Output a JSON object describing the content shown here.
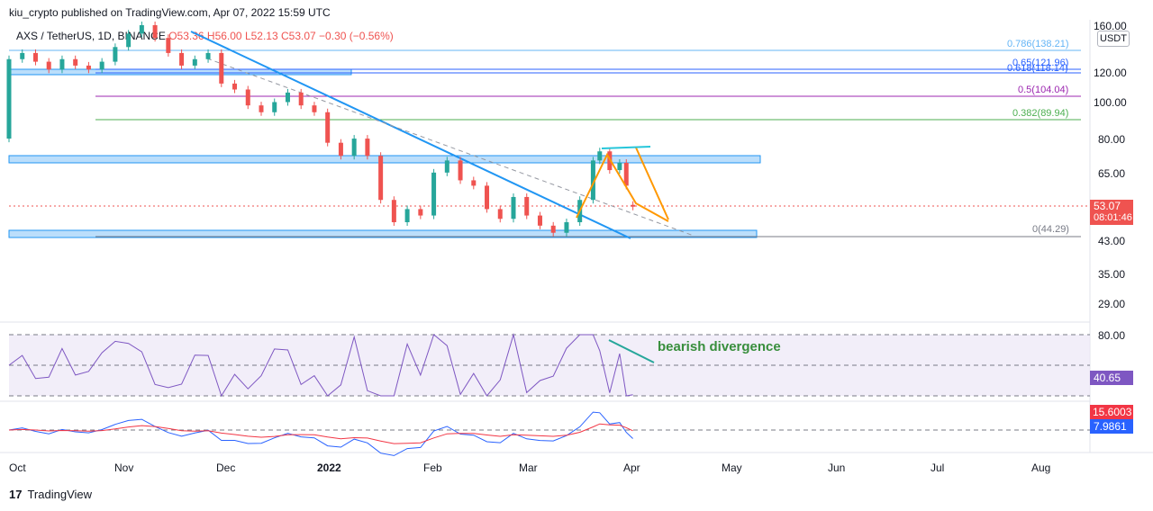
{
  "header": {
    "publisher": "kiu_crypto published on TradingView.com, Apr 07, 2022 15:59 UTC"
  },
  "legend": {
    "symbol": "AXS / TetherUS, 1D, BINANCE",
    "open": "O53.36",
    "high": "H56.00",
    "low": "L52.13",
    "close": "C53.07",
    "change": "−0.30 (−0.56%)"
  },
  "currency_button": "USDT",
  "price_axis": [
    "160.00",
    "120.00",
    "100.00",
    "80.00",
    "65.00",
    "43.00",
    "35.00",
    "29.00"
  ],
  "last_price": {
    "value": "53.07",
    "countdown": "08:01:46"
  },
  "fib_levels": [
    {
      "label": "0.786(138.21)",
      "color": "#64b5f6"
    },
    {
      "label": "0.65(121.96)",
      "color": "#2962ff"
    },
    {
      "label": "0.618(118.14)",
      "color": "#2962ff"
    },
    {
      "label": "0.5(104.04)",
      "color": "#9c27b0"
    },
    {
      "label": "0.382(89.94)",
      "color": "#4caf50"
    },
    {
      "label": "0(44.29)",
      "color": "#787b86"
    }
  ],
  "annotation": "bearish divergence",
  "rsi_axis": [
    "80.00"
  ],
  "rsi_value": "40.65",
  "macd_values": {
    "signal": "15.6003",
    "macd": "7.9861"
  },
  "time_axis": [
    "Oct",
    "Nov",
    "Dec",
    "2022",
    "Feb",
    "Mar",
    "Apr",
    "May",
    "Jun",
    "Jul",
    "Aug"
  ],
  "footer": "TradingView",
  "colors": {
    "up": "#26a69a",
    "down": "#ef5350",
    "trend": "#2196f3",
    "wedge": "#ff9800",
    "rsi": "#7e57c2",
    "macd_fast": "#2962ff",
    "macd_slow": "#f23645"
  },
  "chart_data": {
    "type": "candlestick",
    "title": "AXS / TetherUS, 1D, BINANCE",
    "y_scale": "log",
    "ylim": [
      26,
      165
    ],
    "x_start": "2021-10-01",
    "x_end": "2022-08-20",
    "candles": [
      {
        "d": "2021-10-01",
        "o": 80,
        "c": 130
      },
      {
        "d": "2021-10-05",
        "o": 130,
        "c": 135
      },
      {
        "d": "2021-10-09",
        "o": 135,
        "c": 128
      },
      {
        "d": "2021-10-13",
        "o": 128,
        "c": 122
      },
      {
        "d": "2021-10-17",
        "o": 122,
        "c": 130
      },
      {
        "d": "2021-10-21",
        "o": 130,
        "c": 125
      },
      {
        "d": "2021-10-25",
        "o": 125,
        "c": 122
      },
      {
        "d": "2021-10-29",
        "o": 122,
        "c": 128
      },
      {
        "d": "2021-11-02",
        "o": 128,
        "c": 140
      },
      {
        "d": "2021-11-06",
        "o": 140,
        "c": 152
      },
      {
        "d": "2021-11-10",
        "o": 152,
        "c": 160
      },
      {
        "d": "2021-11-14",
        "o": 160,
        "c": 148
      },
      {
        "d": "2021-11-18",
        "o": 148,
        "c": 135
      },
      {
        "d": "2021-11-22",
        "o": 135,
        "c": 125
      },
      {
        "d": "2021-11-26",
        "o": 125,
        "c": 130
      },
      {
        "d": "2021-11-30",
        "o": 130,
        "c": 135
      },
      {
        "d": "2021-12-04",
        "o": 135,
        "c": 112
      },
      {
        "d": "2021-12-08",
        "o": 112,
        "c": 108
      },
      {
        "d": "2021-12-12",
        "o": 108,
        "c": 98
      },
      {
        "d": "2021-12-16",
        "o": 98,
        "c": 94
      },
      {
        "d": "2021-12-20",
        "o": 94,
        "c": 100
      },
      {
        "d": "2021-12-24",
        "o": 100,
        "c": 106
      },
      {
        "d": "2021-12-28",
        "o": 106,
        "c": 98
      },
      {
        "d": "2022-01-01",
        "o": 98,
        "c": 94
      },
      {
        "d": "2022-01-05",
        "o": 94,
        "c": 78
      },
      {
        "d": "2022-01-09",
        "o": 78,
        "c": 72
      },
      {
        "d": "2022-01-13",
        "o": 72,
        "c": 80
      },
      {
        "d": "2022-01-17",
        "o": 80,
        "c": 72
      },
      {
        "d": "2022-01-21",
        "o": 72,
        "c": 55
      },
      {
        "d": "2022-01-25",
        "o": 55,
        "c": 48
      },
      {
        "d": "2022-01-29",
        "o": 48,
        "c": 52
      },
      {
        "d": "2022-02-02",
        "o": 52,
        "c": 50
      },
      {
        "d": "2022-02-06",
        "o": 50,
        "c": 65
      },
      {
        "d": "2022-02-10",
        "o": 65,
        "c": 70
      },
      {
        "d": "2022-02-14",
        "o": 70,
        "c": 62
      },
      {
        "d": "2022-02-18",
        "o": 62,
        "c": 60
      },
      {
        "d": "2022-02-22",
        "o": 60,
        "c": 52
      },
      {
        "d": "2022-02-26",
        "o": 52,
        "c": 49
      },
      {
        "d": "2022-03-02",
        "o": 49,
        "c": 56
      },
      {
        "d": "2022-03-06",
        "o": 56,
        "c": 50
      },
      {
        "d": "2022-03-10",
        "o": 50,
        "c": 47
      },
      {
        "d": "2022-03-14",
        "o": 47,
        "c": 45
      },
      {
        "d": "2022-03-18",
        "o": 45,
        "c": 48
      },
      {
        "d": "2022-03-22",
        "o": 48,
        "c": 55
      },
      {
        "d": "2022-03-26",
        "o": 55,
        "c": 70
      },
      {
        "d": "2022-03-28",
        "o": 70,
        "c": 74
      },
      {
        "d": "2022-03-31",
        "o": 74,
        "c": 66
      },
      {
        "d": "2022-04-03",
        "o": 66,
        "c": 69
      },
      {
        "d": "2022-04-05",
        "o": 69,
        "c": 60
      },
      {
        "d": "2022-04-07",
        "o": 53.36,
        "c": 53.07
      }
    ]
  }
}
